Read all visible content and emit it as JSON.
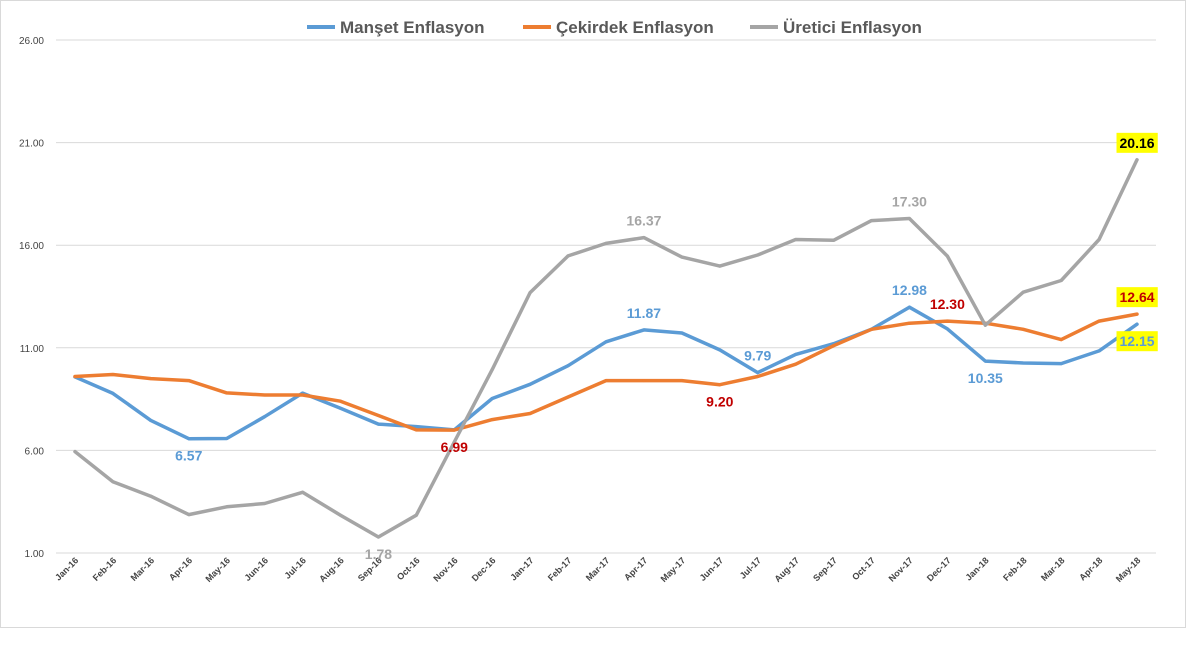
{
  "chart_data": {
    "type": "line",
    "title": "",
    "xlabel": "",
    "ylabel": "",
    "categories": [
      "Jan-16",
      "Feb-16",
      "Mar-16",
      "Apr-16",
      "May-16",
      "Jun-16",
      "Jul-16",
      "Aug-16",
      "Sep-16",
      "Oct-16",
      "Nov-16",
      "Dec-16",
      "Jan-17",
      "Feb-17",
      "Mar-17",
      "Apr-17",
      "May-17",
      "Jun-17",
      "Jul-17",
      "Aug-17",
      "Sep-17",
      "Oct-17",
      "Nov-17",
      "Dec-17",
      "Jan-18",
      "Feb-18",
      "Mar-18",
      "Apr-18",
      "May-18"
    ],
    "y_ticks": [
      "1.00",
      "6.00",
      "11.00",
      "16.00",
      "21.00",
      "26.00"
    ],
    "ylim": [
      1,
      26
    ],
    "grid": true,
    "legend_position": "top",
    "series": [
      {
        "name": "Manşet Enflasyon",
        "color": "#5b9bd5",
        "values": [
          9.58,
          8.78,
          7.46,
          6.57,
          6.58,
          7.64,
          8.79,
          8.05,
          7.28,
          7.16,
          7.0,
          8.53,
          9.22,
          10.13,
          11.29,
          11.87,
          11.72,
          10.9,
          9.79,
          10.68,
          11.2,
          11.9,
          12.98,
          11.92,
          10.35,
          10.26,
          10.23,
          10.85,
          12.15
        ],
        "labels": [
          {
            "index": 3,
            "text": "6.57",
            "pos": "below"
          },
          {
            "index": 15,
            "text": "11.87",
            "pos": "above"
          },
          {
            "index": 18,
            "text": "9.79",
            "pos": "above"
          },
          {
            "index": 22,
            "text": "12.98",
            "pos": "above"
          },
          {
            "index": 24,
            "text": "10.35",
            "pos": "below"
          },
          {
            "index": 28,
            "text": "12.15",
            "pos": "below",
            "highlight": true
          }
        ]
      },
      {
        "name": "Çekirdek Enflasyon",
        "color": "#ed7d31",
        "values": [
          9.6,
          9.7,
          9.5,
          9.4,
          8.8,
          8.7,
          8.7,
          8.4,
          7.7,
          7.0,
          6.99,
          7.5,
          7.8,
          8.6,
          9.4,
          9.4,
          9.4,
          9.2,
          9.6,
          10.2,
          11.1,
          11.9,
          12.2,
          12.3,
          12.2,
          11.9,
          11.4,
          12.3,
          12.64
        ],
        "labels": [
          {
            "index": 10,
            "text": "6.99",
            "pos": "below",
            "color": "#c00000"
          },
          {
            "index": 17,
            "text": "9.20",
            "pos": "below",
            "color": "#c00000"
          },
          {
            "index": 23,
            "text": "12.30",
            "pos": "above",
            "color": "#c00000"
          },
          {
            "index": 28,
            "text": "12.64",
            "pos": "above",
            "color": "#c00000",
            "highlight": true
          }
        ]
      },
      {
        "name": "Üretici Enflasyon",
        "color": "#a5a5a5",
        "values": [
          5.94,
          4.47,
          3.77,
          2.87,
          3.25,
          3.41,
          3.96,
          2.84,
          1.78,
          2.84,
          6.41,
          9.94,
          13.69,
          15.48,
          16.09,
          16.37,
          15.42,
          14.98,
          15.52,
          16.28,
          16.24,
          17.2,
          17.3,
          15.47,
          12.1,
          13.71,
          14.28,
          16.28,
          20.16
        ],
        "labels": [
          {
            "index": 8,
            "text": "1.78",
            "pos": "below"
          },
          {
            "index": 15,
            "text": "16.37",
            "pos": "above"
          },
          {
            "index": 22,
            "text": "17.30",
            "pos": "above"
          },
          {
            "index": 28,
            "text": "20.16",
            "pos": "above",
            "color": "#000000",
            "highlight": true
          }
        ]
      }
    ]
  }
}
